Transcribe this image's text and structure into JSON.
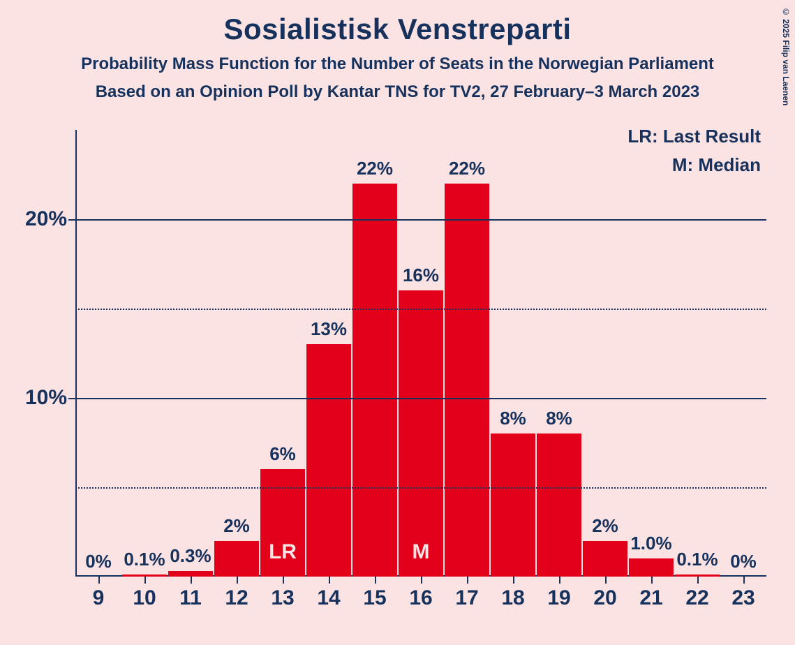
{
  "title": "Sosialistisk Venstreparti",
  "subtitle1": "Probability Mass Function for the Number of Seats in the Norwegian Parliament",
  "subtitle2": "Based on an Opinion Poll by Kantar TNS for TV2, 27 February–3 March 2023",
  "copyright": "© 2025 Filip van Laenen",
  "legend": {
    "lr": "LR: Last Result",
    "m": "M: Median"
  },
  "chart": {
    "type": "bar",
    "background_color": "#fce3e3",
    "bar_color": "#e2001a",
    "text_color": "#16325c",
    "mark_text_color": "#fce3e3",
    "title_fontsize": 42,
    "subtitle_fontsize": 24,
    "axis_label_fontsize": 30,
    "bar_label_fontsize": 26,
    "legend_fontsize": 26,
    "ymax": 25,
    "y_major": [
      10,
      20
    ],
    "y_minor": [
      5,
      15
    ],
    "y_labels": {
      "10": "10%",
      "20": "20%"
    },
    "bar_width": 0.96,
    "categories": [
      "9",
      "10",
      "11",
      "12",
      "13",
      "14",
      "15",
      "16",
      "17",
      "18",
      "19",
      "20",
      "21",
      "22",
      "23"
    ],
    "values": [
      0,
      0.1,
      0.3,
      2,
      6,
      13,
      22,
      16,
      22,
      8,
      8,
      2,
      1.0,
      0.1,
      0
    ],
    "value_labels": [
      "0%",
      "0.1%",
      "0.3%",
      "2%",
      "6%",
      "13%",
      "22%",
      "16%",
      "22%",
      "8%",
      "8%",
      "2%",
      "1.0%",
      "0.1%",
      "0%"
    ],
    "marks": {
      "13": "LR",
      "16": "M"
    }
  }
}
